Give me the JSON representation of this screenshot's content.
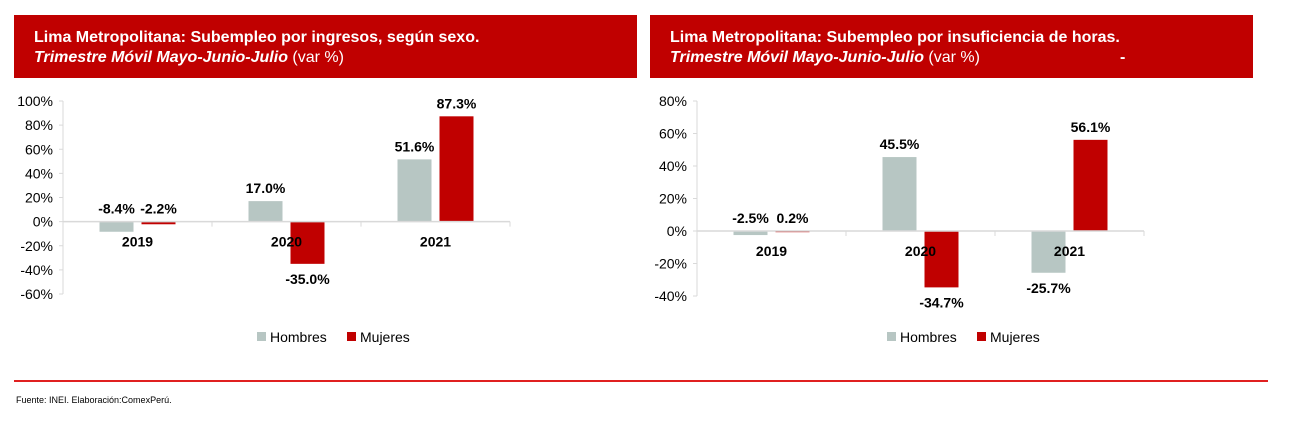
{
  "chart_data": [
    {
      "type": "bar",
      "title": "Lima Metropolitana: Subempleo por ingresos, según sexo.",
      "subtitle_italic": "Trimestre Móvil Mayo-Junio-Julio",
      "subtitle_rest": " (var %)",
      "categories": [
        "2019",
        "2020",
        "2021"
      ],
      "series": [
        {
          "name": "Hombres",
          "color": "#b7c6c3",
          "values": [
            -8.4,
            17.0,
            51.6
          ],
          "labels": [
            "-8.4%",
            "17.0%",
            "51.6%"
          ]
        },
        {
          "name": "Mujeres",
          "color": "#c00000",
          "values": [
            -2.2,
            -35.0,
            87.3
          ],
          "labels": [
            "-2.2%",
            "-35.0%",
            "87.3%"
          ]
        }
      ],
      "ylim": [
        -60,
        100
      ],
      "yticks": [
        100,
        80,
        60,
        40,
        20,
        0,
        -20,
        -40,
        -60
      ],
      "ytick_labels": [
        "100%",
        "80%",
        "60%",
        "40%",
        "20%",
        "0%",
        "-20%",
        "-40%",
        "-60%"
      ],
      "legend": "bottom"
    },
    {
      "type": "bar",
      "title": "Lima Metropolitana: Subempleo por insuficiencia de horas.",
      "subtitle_italic": "Trimestre Móvil Mayo-Junio-Julio",
      "subtitle_rest": " (var %)",
      "extra_mark": "-",
      "categories": [
        "2019",
        "2020",
        "2021"
      ],
      "series": [
        {
          "name": "Hombres",
          "color": "#b7c6c3",
          "values": [
            -2.5,
            45.5,
            -25.7
          ],
          "labels": [
            "-2.5%",
            "45.5%",
            "-25.7%"
          ]
        },
        {
          "name": "Mujeres",
          "color": "#c00000",
          "values": [
            0.2,
            -34.7,
            56.1
          ],
          "labels": [
            "0.2%",
            "-34.7%",
            "56.1%"
          ]
        }
      ],
      "ylim": [
        -40,
        80
      ],
      "yticks": [
        80,
        60,
        40,
        20,
        0,
        -20,
        -40
      ],
      "ytick_labels": [
        "80%",
        "60%",
        "40%",
        "20%",
        "0%",
        "-20%",
        "-40%"
      ],
      "legend": "bottom"
    }
  ],
  "source": "Fuente: INEI. Elaboración:ComexPerú."
}
